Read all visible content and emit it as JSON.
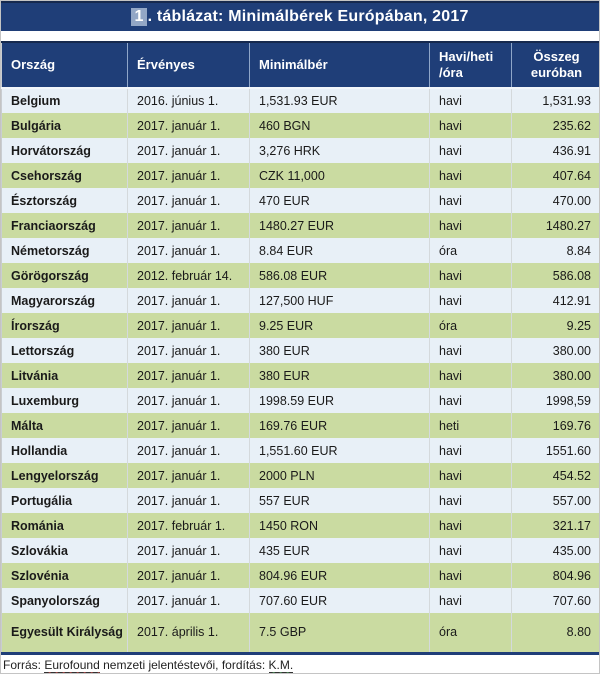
{
  "title": {
    "number": "1",
    "rest": ". táblázat: Minimálbérek Európában, 2017"
  },
  "colors": {
    "header_navy": "#1F3E78",
    "row_green": "#CADBA1",
    "row_light": "#E8F0F7",
    "title_number_highlight": "#93A7C6"
  },
  "table": {
    "columns": [
      "Ország",
      "Érvényes",
      "Minimálbér",
      "Havi/heti\n/óra",
      "Összeg\neuróban"
    ],
    "rows": [
      {
        "country": "Belgium",
        "valid_from": "2016. június 1.",
        "minimum_wage": "1,531.93 EUR",
        "period": "havi",
        "amount_eur": "1,531.93"
      },
      {
        "country": "Bulgária",
        "valid_from": "2017. január 1.",
        "minimum_wage": "460 BGN",
        "period": "havi",
        "amount_eur": "235.62"
      },
      {
        "country": "Horvátország",
        "valid_from": "2017. január 1.",
        "minimum_wage": "3,276 HRK",
        "period": "havi",
        "amount_eur": "436.91"
      },
      {
        "country": "Csehország",
        "valid_from": "2017. január 1.",
        "minimum_wage": "CZK 11,000",
        "period": "havi",
        "amount_eur": "407.64"
      },
      {
        "country": "Észtország",
        "valid_from": "2017. január 1.",
        "minimum_wage": "470 EUR",
        "period": "havi",
        "amount_eur": "470.00"
      },
      {
        "country": "Franciaország",
        "valid_from": "2017. január 1.",
        "minimum_wage": "1480.27 EUR",
        "period": "havi",
        "amount_eur": "1480.27"
      },
      {
        "country": "Németország",
        "valid_from": "2017. január 1.",
        "minimum_wage": "8.84 EUR",
        "period": "óra",
        "amount_eur": "8.84"
      },
      {
        "country": "Görögország",
        "valid_from": "2012. február 14.",
        "minimum_wage": "586.08 EUR",
        "period": "havi",
        "amount_eur": "586.08"
      },
      {
        "country": "Magyarország",
        "valid_from": "2017. január 1.",
        "minimum_wage": "127,500 HUF",
        "period": "havi",
        "amount_eur": "412.91"
      },
      {
        "country": "Írország",
        "valid_from": "2017. január 1.",
        "minimum_wage": "9.25 EUR",
        "period": "óra",
        "amount_eur": "9.25"
      },
      {
        "country": "Lettország",
        "valid_from": "2017. január 1.",
        "minimum_wage": "380 EUR",
        "period": "havi",
        "amount_eur": "380.00"
      },
      {
        "country": "Litvánia",
        "valid_from": "2017. január 1.",
        "minimum_wage": "380 EUR",
        "period": "havi",
        "amount_eur": "380.00"
      },
      {
        "country": "Luxemburg",
        "valid_from": "2017. január 1.",
        "minimum_wage": "1998.59 EUR",
        "period": "havi",
        "amount_eur": "1998,59"
      },
      {
        "country": "Málta",
        "valid_from": "2017. január 1.",
        "minimum_wage": "169.76 EUR",
        "period": "heti",
        "amount_eur": "169.76"
      },
      {
        "country": "Hollandia",
        "valid_from": "2017. január 1.",
        "minimum_wage": "1,551.60 EUR",
        "period": "havi",
        "amount_eur": "1551.60"
      },
      {
        "country": "Lengyelország",
        "valid_from": "2017. január 1.",
        "minimum_wage": "2000 PLN",
        "period": "havi",
        "amount_eur": "454.52"
      },
      {
        "country": "Portugália",
        "valid_from": "2017. január 1.",
        "minimum_wage": "557 EUR",
        "period": "havi",
        "amount_eur": "557.00"
      },
      {
        "country": "Románia",
        "valid_from": "2017. február 1.",
        "minimum_wage": "1450 RON",
        "period": "havi",
        "amount_eur": "321.17"
      },
      {
        "country": "Szlovákia",
        "valid_from": "2017. január 1.",
        "minimum_wage": "435 EUR",
        "period": "havi",
        "amount_eur": "435.00"
      },
      {
        "country": "Szlovénia",
        "valid_from": "2017. január 1.",
        "minimum_wage": "804.96 EUR",
        "period": "havi",
        "amount_eur": "804.96"
      },
      {
        "country": "Spanyolország",
        "valid_from": "2017. január 1.",
        "minimum_wage": "707.60 EUR",
        "period": "havi",
        "amount_eur": "707.60"
      },
      {
        "country": "Egyesült Királyság",
        "valid_from": "2017. április 1.",
        "minimum_wage": "7.5 GBP",
        "period": "óra",
        "amount_eur": "8.80"
      }
    ]
  },
  "footer": {
    "prefix": "Forrás:",
    "source": "Eurofound",
    "middle": "nemzeti jelentéstevői, fordítás:",
    "translator": "K.M."
  }
}
